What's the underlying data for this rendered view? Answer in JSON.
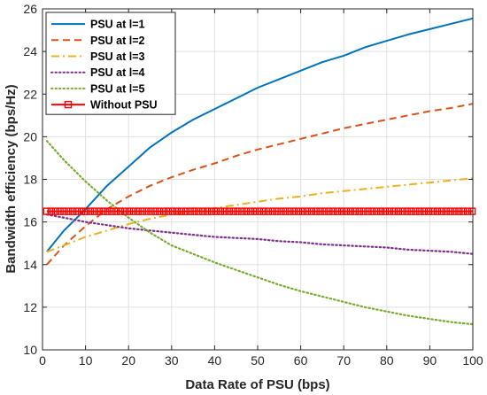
{
  "chart_data": {
    "type": "line",
    "xlabel": "Data Rate of PSU (bps)",
    "ylabel": "Bandwidth efficiency (bps/Hz)",
    "xlim": [
      0,
      100
    ],
    "ylim": [
      10,
      26
    ],
    "xticks": [
      0,
      10,
      20,
      30,
      40,
      50,
      60,
      70,
      80,
      90,
      100
    ],
    "yticks": [
      10,
      12,
      14,
      16,
      18,
      20,
      22,
      24,
      26
    ],
    "grid": true,
    "legend_position": "top-left",
    "series": [
      {
        "name": "PSU at l=1",
        "color": "#0072BD",
        "style": "solid",
        "x": [
          1,
          5,
          10,
          15,
          20,
          25,
          30,
          35,
          40,
          45,
          50,
          55,
          60,
          65,
          70,
          75,
          80,
          85,
          90,
          95,
          100
        ],
        "y": [
          14.6,
          15.6,
          16.6,
          17.7,
          18.6,
          19.5,
          20.2,
          20.8,
          21.3,
          21.8,
          22.3,
          22.7,
          23.1,
          23.5,
          23.8,
          24.2,
          24.5,
          24.8,
          25.05,
          25.3,
          25.55
        ]
      },
      {
        "name": "PSU at l=2",
        "color": "#D95319",
        "style": "dashed",
        "x": [
          1,
          5,
          10,
          15,
          20,
          25,
          30,
          35,
          40,
          45,
          50,
          55,
          60,
          65,
          70,
          75,
          80,
          85,
          90,
          95,
          100
        ],
        "y": [
          14.0,
          14.9,
          15.8,
          16.6,
          17.2,
          17.7,
          18.1,
          18.45,
          18.75,
          19.1,
          19.4,
          19.65,
          19.9,
          20.15,
          20.4,
          20.6,
          20.8,
          21.0,
          21.2,
          21.35,
          21.55
        ]
      },
      {
        "name": "PSU at l=3",
        "color": "#EDB120",
        "style": "dashdot",
        "x": [
          1,
          5,
          10,
          15,
          20,
          25,
          30,
          35,
          40,
          45,
          50,
          55,
          60,
          65,
          70,
          75,
          80,
          85,
          90,
          95,
          100
        ],
        "y": [
          14.6,
          14.9,
          15.3,
          15.6,
          15.9,
          16.15,
          16.35,
          16.5,
          16.65,
          16.8,
          16.95,
          17.1,
          17.2,
          17.35,
          17.45,
          17.55,
          17.65,
          17.75,
          17.85,
          17.95,
          18.05
        ]
      },
      {
        "name": "PSU at l=4",
        "color": "#7E2F8E",
        "style": "dotted",
        "x": [
          1,
          5,
          10,
          15,
          20,
          25,
          30,
          35,
          40,
          45,
          50,
          55,
          60,
          65,
          70,
          75,
          80,
          85,
          90,
          95,
          100
        ],
        "y": [
          16.35,
          16.2,
          16.0,
          15.85,
          15.7,
          15.6,
          15.5,
          15.4,
          15.3,
          15.25,
          15.2,
          15.1,
          15.05,
          14.95,
          14.9,
          14.85,
          14.8,
          14.7,
          14.65,
          14.6,
          14.5
        ]
      },
      {
        "name": "PSU at l=5",
        "color": "#77AC30",
        "style": "dotted",
        "x": [
          1,
          5,
          10,
          15,
          20,
          25,
          30,
          35,
          40,
          45,
          50,
          55,
          60,
          65,
          70,
          75,
          80,
          85,
          90,
          95,
          100
        ],
        "y": [
          19.8,
          18.9,
          17.9,
          17.0,
          16.2,
          15.5,
          14.9,
          14.5,
          14.1,
          13.75,
          13.4,
          13.05,
          12.75,
          12.5,
          12.25,
          12.0,
          11.8,
          11.6,
          11.45,
          11.3,
          11.2
        ]
      },
      {
        "name": "Without PSU",
        "color": "#FF0000",
        "style": "marker-square",
        "x": [
          1,
          100
        ],
        "y": [
          16.5,
          16.5
        ]
      }
    ]
  }
}
